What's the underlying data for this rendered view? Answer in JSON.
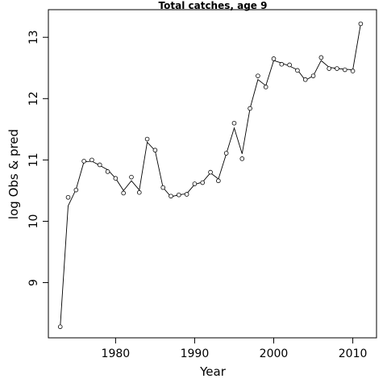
{
  "chart_data": {
    "type": "line",
    "title": "Total catches, age 9",
    "xlabel": "Year",
    "ylabel": "log Obs & pred",
    "xlim": [
      1971.5,
      2013.0
    ],
    "ylim": [
      8.1,
      13.45
    ],
    "x_ticks": [
      1980,
      1990,
      2000,
      2010
    ],
    "y_ticks": [
      9,
      10,
      11,
      12,
      13
    ],
    "grid": false,
    "series": [
      {
        "style": "points",
        "marker": "open-circle",
        "x": [
          1973,
          1974,
          1975,
          1976,
          1977,
          1978,
          1979,
          1980,
          1981,
          1982,
          1983,
          1984,
          1985,
          1986,
          1987,
          1988,
          1989,
          1990,
          1991,
          1992,
          1993,
          1994,
          1995,
          1996,
          1997,
          1998,
          1999,
          2000,
          2001,
          2002,
          2003,
          2004,
          2005,
          2006,
          2007,
          2008,
          2009,
          2010,
          2011
        ],
        "values": [
          8.28,
          10.39,
          10.51,
          10.98,
          11.0,
          10.92,
          10.81,
          10.7,
          10.46,
          10.72,
          10.47,
          11.34,
          11.16,
          10.55,
          10.41,
          10.43,
          10.44,
          10.61,
          10.63,
          10.8,
          10.66,
          11.11,
          11.6,
          11.02,
          11.84,
          12.37,
          12.19,
          12.65,
          12.56,
          12.55,
          12.46,
          12.31,
          12.37,
          12.67,
          12.49,
          12.49,
          12.47,
          12.45,
          13.22
        ]
      },
      {
        "style": "line",
        "x": [
          1973,
          1974,
          1975,
          1976,
          1977,
          1978,
          1979,
          1980,
          1981,
          1982,
          1983,
          1984,
          1985,
          1986,
          1987,
          1988,
          1989,
          1990,
          1991,
          1992,
          1993,
          1994,
          1995,
          1996,
          1997,
          1998,
          1999,
          2000,
          2001,
          2002,
          2003,
          2004,
          2005,
          2006,
          2007,
          2008,
          2009,
          2010,
          2011
        ],
        "values": [
          8.28,
          10.25,
          10.52,
          10.97,
          10.98,
          10.91,
          10.84,
          10.7,
          10.5,
          10.66,
          10.51,
          11.29,
          11.15,
          10.55,
          10.4,
          10.43,
          10.45,
          10.6,
          10.64,
          10.79,
          10.69,
          11.1,
          11.52,
          11.1,
          11.84,
          12.31,
          12.21,
          12.62,
          12.58,
          12.53,
          12.47,
          12.3,
          12.37,
          12.62,
          12.51,
          12.49,
          12.48,
          12.47,
          13.22
        ]
      }
    ]
  }
}
